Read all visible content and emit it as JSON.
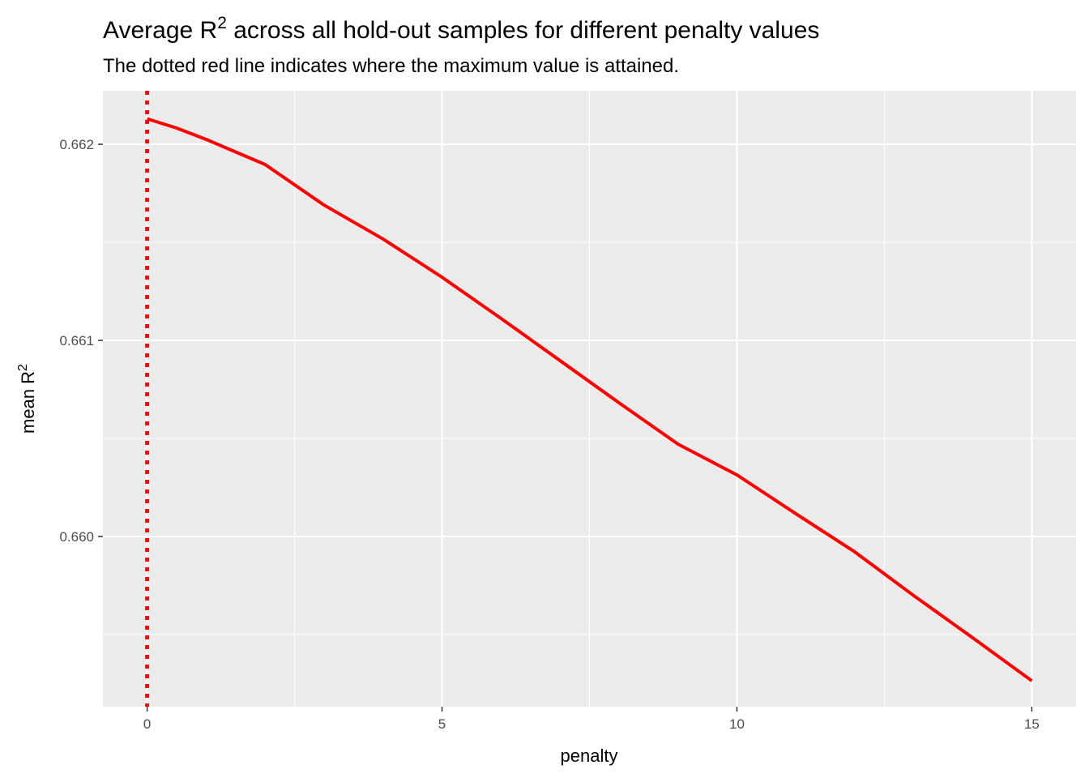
{
  "chart_data": {
    "type": "line",
    "title": {
      "text": "Average R",
      "sup": "2",
      "rest": " across all hold-out samples for different penalty values"
    },
    "subtitle": "The dotted red line indicates where the maximum value is attained.",
    "x_label": "penalty",
    "y_label": {
      "text": "mean R",
      "sup": "2"
    },
    "x": [
      0,
      0.5,
      1,
      2,
      3,
      4,
      5,
      6,
      7,
      8,
      9,
      10,
      11,
      12,
      13,
      14,
      15
    ],
    "values": [
      0.66213,
      0.662083,
      0.662025,
      0.661897,
      0.66169,
      0.661517,
      0.661322,
      0.661112,
      0.660897,
      0.660682,
      0.660471,
      0.660314,
      0.660116,
      0.659921,
      0.659698,
      0.659483,
      0.659264
    ],
    "color": "#ff0000",
    "vline": {
      "x": 0,
      "color": "#ff0000"
    },
    "xlim": [
      -0.75,
      15.75
    ],
    "ylim": [
      0.659132,
      0.662273
    ],
    "xticks": [
      0,
      5,
      10,
      15
    ],
    "yticks": [
      {
        "value": 0.66,
        "label": "0.660"
      },
      0.661,
      0.662
    ],
    "x_minor_ticks": [
      2.5,
      7.5,
      12.5
    ],
    "y_minor_ticks": [
      0.6595,
      0.6605,
      0.6615
    ],
    "grid": true
  }
}
